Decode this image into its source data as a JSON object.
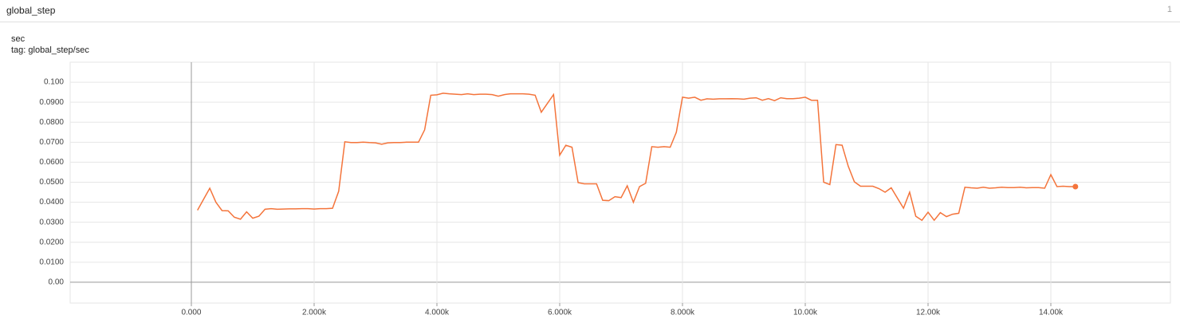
{
  "header": {
    "title": "global_step",
    "count": 1
  },
  "chart_data": {
    "type": "line",
    "title": "sec",
    "subtitle": "tag: global_step/sec",
    "x": [
      100,
      200,
      300,
      400,
      500,
      600,
      700,
      800,
      900,
      1000,
      1100,
      1200,
      1300,
      1400,
      1500,
      1600,
      1700,
      1800,
      1900,
      2000,
      2100,
      2200,
      2300,
      2400,
      2500,
      2600,
      2700,
      2800,
      2900,
      3000,
      3100,
      3200,
      3300,
      3400,
      3500,
      3600,
      3700,
      3800,
      3900,
      4000,
      4100,
      4200,
      4300,
      4400,
      4500,
      4600,
      4700,
      4800,
      4900,
      5000,
      5100,
      5200,
      5300,
      5400,
      5500,
      5600,
      5700,
      5900,
      6000,
      6100,
      6200,
      6300,
      6400,
      6500,
      6600,
      6700,
      6800,
      6900,
      7000,
      7100,
      7200,
      7300,
      7400,
      7500,
      7600,
      7700,
      7800,
      7900,
      8000,
      8100,
      8200,
      8300,
      8400,
      8500,
      8600,
      8700,
      8800,
      8900,
      9000,
      9100,
      9200,
      9300,
      9400,
      9500,
      9600,
      9700,
      9800,
      9900,
      10000,
      10100,
      10200,
      10300,
      10400,
      10500,
      10600,
      10700,
      10800,
      10900,
      11000,
      11100,
      11200,
      11300,
      11400,
      11600,
      11700,
      11800,
      11900,
      12000,
      12100,
      12200,
      12300,
      12400,
      12500,
      12600,
      12700,
      12800,
      12900,
      13000,
      13100,
      13200,
      13300,
      13400,
      13500,
      13600,
      13700,
      13800,
      13900,
      14000,
      14100,
      14200,
      14300,
      14400
    ],
    "series": [
      {
        "name": "global_step/sec",
        "color": "#f4743b",
        "values": [
          0.036,
          0.0415,
          0.047,
          0.04,
          0.0358,
          0.0357,
          0.0325,
          0.0315,
          0.0352,
          0.032,
          0.033,
          0.0365,
          0.0368,
          0.0365,
          0.0366,
          0.0367,
          0.0367,
          0.0368,
          0.0368,
          0.0366,
          0.0368,
          0.0368,
          0.037,
          0.0455,
          0.0702,
          0.0698,
          0.0698,
          0.07,
          0.0698,
          0.0697,
          0.069,
          0.0697,
          0.0698,
          0.0698,
          0.07,
          0.07,
          0.07,
          0.0762,
          0.0935,
          0.0937,
          0.0945,
          0.0942,
          0.094,
          0.0938,
          0.0942,
          0.0938,
          0.094,
          0.094,
          0.0938,
          0.093,
          0.0938,
          0.0942,
          0.0942,
          0.0942,
          0.094,
          0.0935,
          0.085,
          0.0938,
          0.0635,
          0.0685,
          0.0675,
          0.0498,
          0.0492,
          0.0492,
          0.0492,
          0.041,
          0.0408,
          0.0428,
          0.0423,
          0.0482,
          0.04,
          0.0478,
          0.0495,
          0.0678,
          0.0675,
          0.0678,
          0.0675,
          0.075,
          0.0925,
          0.092,
          0.0925,
          0.091,
          0.0917,
          0.0915,
          0.0917,
          0.0917,
          0.0918,
          0.0917,
          0.0915,
          0.092,
          0.0922,
          0.091,
          0.0918,
          0.0908,
          0.0922,
          0.0918,
          0.0918,
          0.092,
          0.0925,
          0.091,
          0.091,
          0.05,
          0.0488,
          0.0688,
          0.0685,
          0.058,
          0.0502,
          0.048,
          0.048,
          0.048,
          0.0468,
          0.045,
          0.0472,
          0.037,
          0.045,
          0.033,
          0.031,
          0.035,
          0.031,
          0.0348,
          0.0328,
          0.034,
          0.0345,
          0.0475,
          0.0472,
          0.047,
          0.0475,
          0.047,
          0.0472,
          0.0475,
          0.0473,
          0.0473,
          0.0475,
          0.0472,
          0.0473,
          0.0473,
          0.047,
          0.0538,
          0.0478,
          0.048,
          0.0478,
          0.0478
        ]
      }
    ],
    "xlim": [
      -1974,
      15948
    ],
    "ylim": [
      -0.0104,
      0.11
    ],
    "xticks": [
      {
        "value": 0,
        "label": "0.000"
      },
      {
        "value": 2000,
        "label": "2.000k"
      },
      {
        "value": 4000,
        "label": "4.000k"
      },
      {
        "value": 6000,
        "label": "6.000k"
      },
      {
        "value": 8000,
        "label": "8.000k"
      },
      {
        "value": 10000,
        "label": "10.00k"
      },
      {
        "value": 12000,
        "label": "12.00k"
      },
      {
        "value": 14000,
        "label": "14.00k"
      }
    ],
    "yticks": [
      {
        "value": 0,
        "label": "0.00"
      },
      {
        "value": 0.01,
        "label": "0.0100"
      },
      {
        "value": 0.02,
        "label": "0.0200"
      },
      {
        "value": 0.03,
        "label": "0.0300"
      },
      {
        "value": 0.04,
        "label": "0.0400"
      },
      {
        "value": 0.05,
        "label": "0.0500"
      },
      {
        "value": 0.06,
        "label": "0.0600"
      },
      {
        "value": 0.07,
        "label": "0.0700"
      },
      {
        "value": 0.08,
        "label": "0.0800"
      },
      {
        "value": 0.09,
        "label": "0.0900"
      },
      {
        "value": 0.1,
        "label": "0.100"
      }
    ],
    "grid": true
  }
}
